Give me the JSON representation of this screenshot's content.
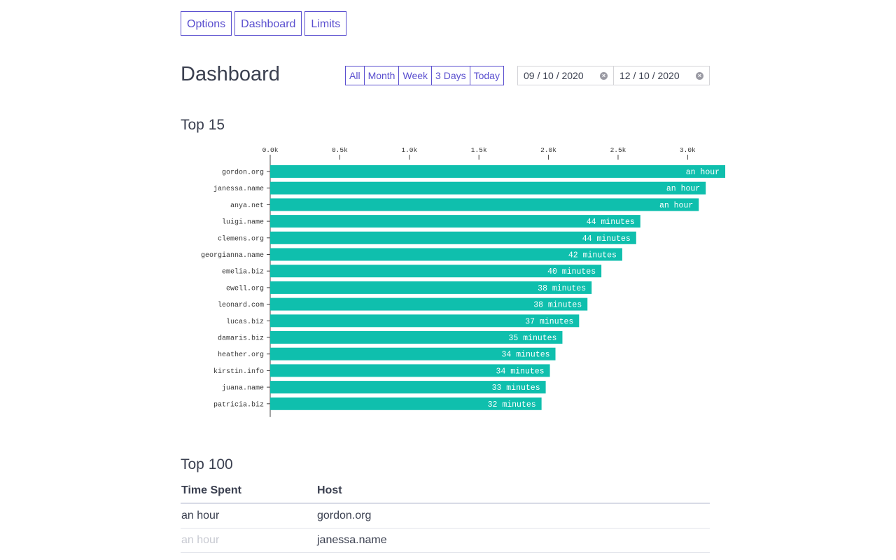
{
  "nav": {
    "items": [
      "Options",
      "Dashboard",
      "Limits"
    ]
  },
  "page_title": "Dashboard",
  "range_buttons": [
    "All",
    "Month",
    "Week",
    "3 Days",
    "Today"
  ],
  "dates": {
    "start": "09 / 10 / 2020",
    "end": "12 / 10 / 2020",
    "clear_icon": "clear-circle-x-icon"
  },
  "top15": {
    "title": "Top 15"
  },
  "chart_data": {
    "type": "bar",
    "orientation": "horizontal",
    "categories": [
      "gordon.org",
      "janessa.name",
      "anya.net",
      "luigi.name",
      "clemens.org",
      "georgianna.name",
      "emelia.biz",
      "ewell.org",
      "leonard.com",
      "lucas.biz",
      "damaris.biz",
      "heather.org",
      "kirstin.info",
      "juana.name",
      "patricia.biz"
    ],
    "values": [
      3270,
      3130,
      3080,
      2660,
      2630,
      2530,
      2380,
      2310,
      2280,
      2220,
      2100,
      2050,
      2010,
      1980,
      1950
    ],
    "data_labels": [
      "an hour",
      "an hour",
      "an hour",
      "44 minutes",
      "44 minutes",
      "42 minutes",
      "40 minutes",
      "38 minutes",
      "38 minutes",
      "37 minutes",
      "35 minutes",
      "34 minutes",
      "34 minutes",
      "33 minutes",
      "32 minutes"
    ],
    "x_ticks": [
      0,
      500,
      1000,
      1500,
      2000,
      2500,
      3000
    ],
    "x_tick_labels": [
      "0.0k",
      "0.5k",
      "1.0k",
      "1.5k",
      "2.0k",
      "2.5k",
      "3.0k"
    ],
    "xlim": [
      0,
      3300
    ],
    "axis_position": "top",
    "bar_color": "#0fbfad",
    "title": "",
    "xlabel": "",
    "ylabel": ""
  },
  "top100": {
    "title": "Top 100",
    "columns": [
      "Time Spent",
      "Host"
    ],
    "rows": [
      {
        "time": "an hour",
        "host": "gordon.org",
        "faded": false
      },
      {
        "time": "an hour",
        "host": "janessa.name",
        "faded": true
      }
    ]
  },
  "colors": {
    "accent": "#5a4fcf",
    "bar": "#0fbfad",
    "text": "#3b4050"
  }
}
